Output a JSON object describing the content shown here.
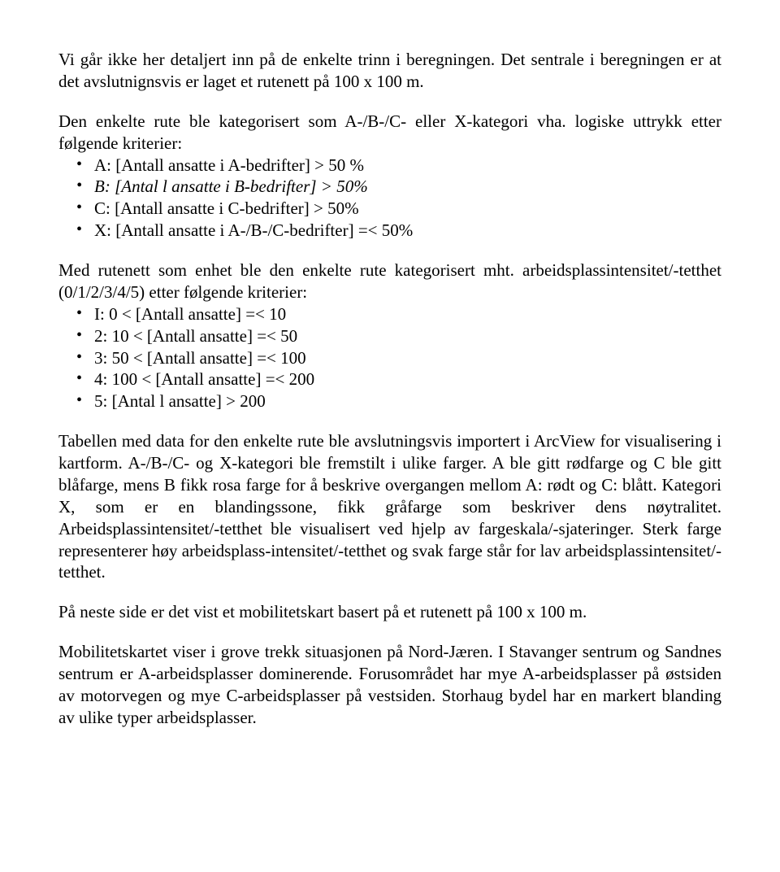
{
  "p1": "Vi går ikke her detaljert inn på de enkelte trinn i beregningen. Det sentrale i beregningen er at det avslutnignsvis er laget et rutenett på 100 x 100 m.",
  "p2_intro": "Den enkelte rute ble kategorisert som A-/B-/C- eller X-kategori vha. logiske uttrykk etter følgende kriterier:",
  "list1": {
    "a": "A: [Antall ansatte i A-bedrifter] > 50 %",
    "b": "B: [Antal l ansatte i B-bedrifter] > 50%",
    "c": "C: [Antall ansatte i C-bedrifter] > 50%",
    "x": "X: [Antall ansatte i A-/B-/C-bedrifter] =< 50%"
  },
  "p3_intro": "Med rutenett som enhet ble den enkelte rute kategorisert mht. arbeidsplassintensitet/-tetthet (0/1/2/3/4/5) etter følgende kriterier:",
  "list2": {
    "i1": "I: 0 < [Antall ansatte] =< 10",
    "i2": "2: 10 < [Antall ansatte] =< 50",
    "i3": "3: 50 < [Antall ansatte] =< 100",
    "i4": "4: 100 < [Antall ansatte] =< 200",
    "i5": "5: [Antal l ansatte] > 200"
  },
  "p4": "Tabellen med data for den enkelte rute ble avslutningsvis importert i ArcView for visualisering i kartform. A-/B-/C- og X-kategori ble fremstilt i ulike farger. A ble gitt rødfarge og C ble gitt blåfarge, mens B fikk rosa farge for å beskrive overgangen mellom A: rødt og C: blått. Kategori X, som er en blandingssone, fikk gråfarge som beskriver dens nøytralitet. Arbeidsplassintensitet/-tetthet ble visualisert ved hjelp av fargeskala/-sjateringer. Sterk farge representerer høy arbeidsplass-intensitet/-tetthet og svak farge står for lav arbeidsplassintensitet/-tetthet.",
  "p5": "På neste side er det vist et mobilitetskart basert på et rutenett på 100 x 100 m.",
  "p6": "Mobilitetskartet viser i grove trekk situasjonen på Nord-Jæren. I Stavanger sentrum og Sandnes sentrum er A-arbeidsplasser dominerende. Forusområdet har mye A-arbeidsplasser på østsiden av motorvegen og mye C-arbeidsplasser på vestsiden. Storhaug bydel har en markert blanding av ulike typer arbeidsplasser."
}
